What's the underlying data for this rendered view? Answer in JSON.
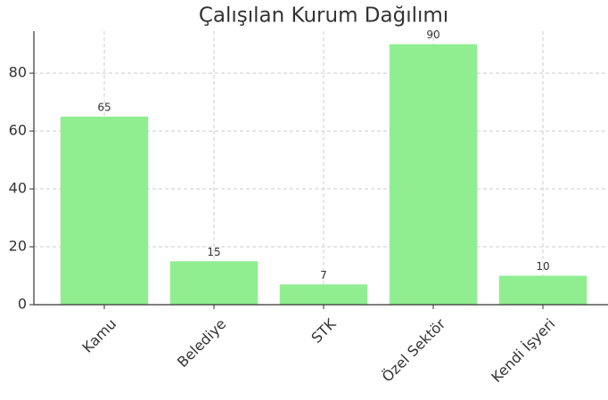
{
  "chart_data": {
    "type": "bar",
    "title": "Çalışılan Kurum Dağılımı",
    "categories": [
      "Kamu",
      "Belediye",
      "STK",
      "Özel Sektör",
      "Kendi İşyeri"
    ],
    "values": [
      65,
      15,
      7,
      90,
      10
    ],
    "color": "#90ee90",
    "ylim": [
      0,
      94.5
    ],
    "yticks": [
      0,
      20,
      40,
      60,
      80
    ],
    "grid": true
  }
}
